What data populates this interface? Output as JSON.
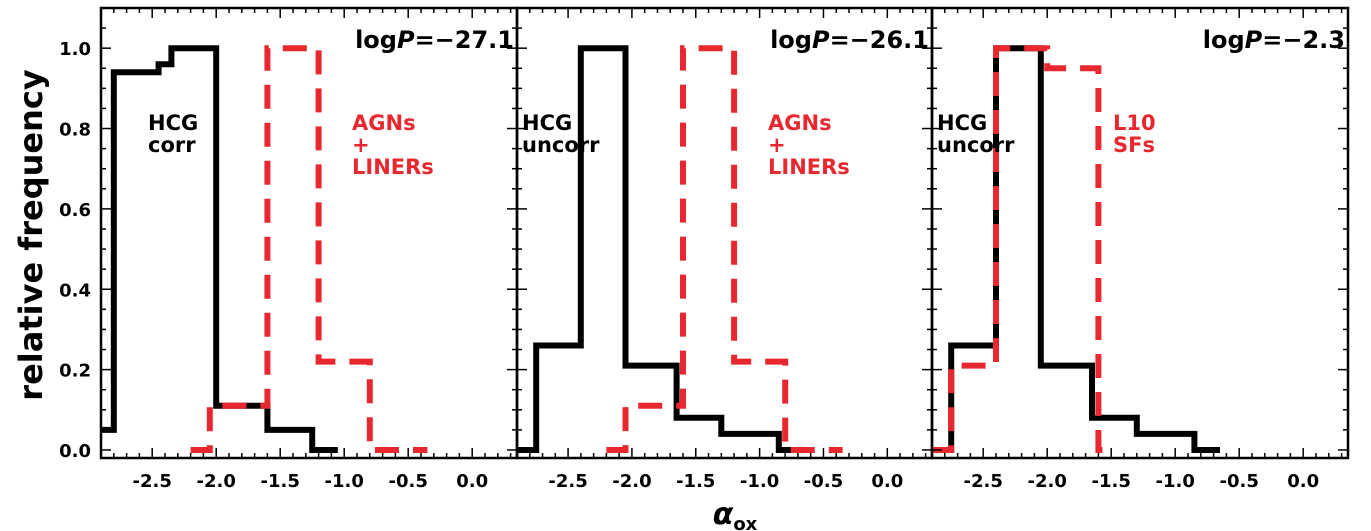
{
  "figure": {
    "ylabel": "relative frequency",
    "xlabel": "α",
    "xlabel_sub": "ox"
  },
  "colors": {
    "black_series": "#000000",
    "red_series": "#e8282e",
    "axes": "#000000"
  },
  "chart_data": [
    {
      "type": "step-histogram",
      "xlim": [
        -2.9,
        0.35
      ],
      "ylim": [
        -0.02,
        1.1
      ],
      "xticks": [
        -2.5,
        -2.0,
        -1.5,
        -1.0,
        -0.5,
        0.0
      ],
      "xtick_labels": [
        "-2.5",
        "-2.0",
        "-1.5",
        "-1.0",
        "-0.5",
        "0.0"
      ],
      "yticks": [
        0.0,
        0.2,
        0.4,
        0.6,
        0.8,
        1.0
      ],
      "ytick_labels": [
        "0.0",
        "0.2",
        "0.4",
        "0.6",
        "0.8",
        "1.0"
      ],
      "annotation_title": "logP=−27.1",
      "title_prefix": "log",
      "title_var": "P",
      "title_value": "=−27.1",
      "series": [
        {
          "label_lines": [
            "HCG",
            "corr"
          ],
          "style": "solid",
          "color": "#000000",
          "x": [
            -2.9,
            -2.8,
            -2.8,
            -2.45,
            -2.45,
            -2.35,
            -2.35,
            -2.0,
            -2.0,
            -1.6,
            -1.6,
            -1.25,
            -1.25,
            -1.05
          ],
          "y": [
            0.05,
            0.05,
            0.94,
            0.94,
            0.96,
            0.96,
            1.0,
            1.0,
            0.11,
            0.11,
            0.05,
            0.05,
            0.0,
            0.0
          ]
        },
        {
          "label_lines": [
            "AGNs",
            "+",
            "LINERs"
          ],
          "style": "dashed",
          "color": "#e8282e",
          "x": [
            -2.2,
            -2.05,
            -2.05,
            -1.6,
            -1.6,
            -1.2,
            -1.2,
            -0.8,
            -0.8,
            -0.35
          ],
          "y": [
            0.0,
            0.0,
            0.11,
            0.11,
            1.0,
            1.0,
            0.22,
            0.22,
            0.0,
            0.0
          ]
        }
      ]
    },
    {
      "type": "step-histogram",
      "xlim": [
        -2.9,
        0.35
      ],
      "ylim": [
        -0.02,
        1.1
      ],
      "xticks": [
        -2.5,
        -2.0,
        -1.5,
        -1.0,
        -0.5,
        0.0
      ],
      "xtick_labels": [
        "-2.5",
        "-2.0",
        "-1.5",
        "-1.0",
        "-0.5",
        "0.0"
      ],
      "annotation_title": "logP=−26.1",
      "title_prefix": "log",
      "title_var": "P",
      "title_value": "=−26.1",
      "series": [
        {
          "label_lines": [
            "HCG",
            "uncorr"
          ],
          "style": "solid",
          "color": "#000000",
          "x": [
            -2.9,
            -2.75,
            -2.75,
            -2.4,
            -2.4,
            -2.05,
            -2.05,
            -1.65,
            -1.65,
            -1.3,
            -1.3,
            -0.85,
            -0.85,
            -0.65
          ],
          "y": [
            0.0,
            0.0,
            0.26,
            0.26,
            1.0,
            1.0,
            0.21,
            0.21,
            0.08,
            0.08,
            0.04,
            0.04,
            0.0,
            0.0
          ]
        },
        {
          "label_lines": [
            "AGNs",
            "+",
            "LINERs"
          ],
          "style": "dashed",
          "color": "#e8282e",
          "x": [
            -2.2,
            -2.05,
            -2.05,
            -1.6,
            -1.6,
            -1.2,
            -1.2,
            -0.8,
            -0.8,
            -0.35
          ],
          "y": [
            0.0,
            0.0,
            0.11,
            0.11,
            1.0,
            1.0,
            0.22,
            0.22,
            0.0,
            0.0
          ]
        }
      ]
    },
    {
      "type": "step-histogram",
      "xlim": [
        -2.9,
        0.35
      ],
      "ylim": [
        -0.02,
        1.1
      ],
      "xticks": [
        -2.5,
        -2.0,
        -1.5,
        -1.0,
        -0.5,
        0.0
      ],
      "xtick_labels": [
        "-2.5",
        "-2.0",
        "-1.5",
        "-1.0",
        "-0.5",
        "0.0"
      ],
      "annotation_title": "logP=−2.3",
      "title_prefix": "log",
      "title_var": "P",
      "title_value": "=−2.3",
      "series": [
        {
          "label_lines": [
            "HCG",
            "uncorr"
          ],
          "style": "solid",
          "color": "#000000",
          "x": [
            -2.9,
            -2.75,
            -2.75,
            -2.4,
            -2.4,
            -2.05,
            -2.05,
            -1.65,
            -1.65,
            -1.3,
            -1.3,
            -0.85,
            -0.85,
            -0.65
          ],
          "y": [
            0.0,
            0.0,
            0.26,
            0.26,
            1.0,
            1.0,
            0.21,
            0.21,
            0.08,
            0.08,
            0.04,
            0.04,
            0.0,
            0.0
          ]
        },
        {
          "label_lines": [
            "L10",
            "SFs"
          ],
          "style": "dashed",
          "color": "#e8282e",
          "x": [
            -2.9,
            -2.75,
            -2.75,
            -2.4,
            -2.4,
            -2.0,
            -2.0,
            -1.6,
            -1.6,
            -1.5
          ],
          "y": [
            0.0,
            0.0,
            0.21,
            0.21,
            1.0,
            1.0,
            0.95,
            0.95,
            0.0,
            0.0
          ]
        }
      ]
    }
  ]
}
